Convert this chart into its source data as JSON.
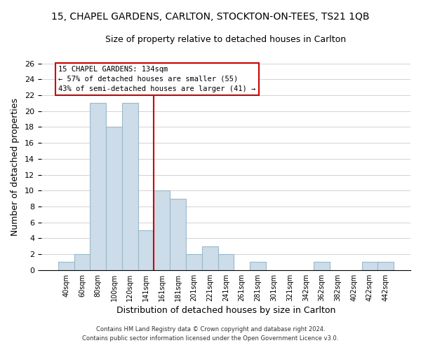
{
  "title_line1": "15, CHAPEL GARDENS, CARLTON, STOCKTON-ON-TEES, TS21 1QB",
  "title_line2": "Size of property relative to detached houses in Carlton",
  "xlabel": "Distribution of detached houses by size in Carlton",
  "ylabel": "Number of detached properties",
  "bin_labels": [
    "40sqm",
    "60sqm",
    "80sqm",
    "100sqm",
    "120sqm",
    "141sqm",
    "161sqm",
    "181sqm",
    "201sqm",
    "221sqm",
    "241sqm",
    "261sqm",
    "281sqm",
    "301sqm",
    "321sqm",
    "342sqm",
    "362sqm",
    "382sqm",
    "402sqm",
    "422sqm",
    "442sqm"
  ],
  "bar_heights": [
    1,
    2,
    21,
    18,
    21,
    5,
    10,
    9,
    2,
    3,
    2,
    0,
    1,
    0,
    0,
    0,
    1,
    0,
    0,
    1,
    1
  ],
  "bar_color": "#ccdce8",
  "bar_edge_color": "#9ab8cc",
  "marker_bin_index": 5,
  "marker_line_color": "#cc0000",
  "ylim": [
    0,
    26
  ],
  "yticks": [
    0,
    2,
    4,
    6,
    8,
    10,
    12,
    14,
    16,
    18,
    20,
    22,
    24,
    26
  ],
  "annotation_title": "15 CHAPEL GARDENS: 134sqm",
  "annotation_line2": "← 57% of detached houses are smaller (55)",
  "annotation_line3": "43% of semi-detached houses are larger (41) →",
  "annotation_box_color": "#ffffff",
  "annotation_box_edge": "#cc0000",
  "footnote1": "Contains HM Land Registry data © Crown copyright and database right 2024.",
  "footnote2": "Contains public sector information licensed under the Open Government Licence v3.0."
}
